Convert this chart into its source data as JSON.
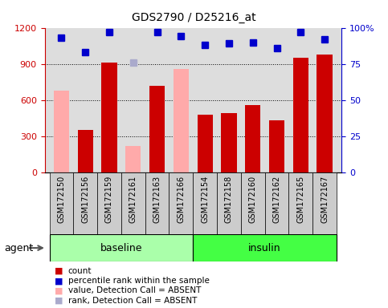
{
  "title": "GDS2790 / D25216_at",
  "categories": [
    "GSM172150",
    "GSM172156",
    "GSM172159",
    "GSM172161",
    "GSM172163",
    "GSM172166",
    "GSM172154",
    "GSM172158",
    "GSM172160",
    "GSM172162",
    "GSM172165",
    "GSM172167"
  ],
  "count_values": [
    null,
    350,
    910,
    null,
    720,
    null,
    480,
    490,
    560,
    430,
    950,
    980
  ],
  "count_absent_values": [
    680,
    null,
    null,
    220,
    null,
    860,
    null,
    null,
    null,
    null,
    null,
    null
  ],
  "percentile_values": [
    93,
    83,
    97,
    null,
    97,
    94,
    88,
    89,
    90,
    86,
    97,
    92
  ],
  "percentile_absent_values": [
    null,
    null,
    null,
    76,
    null,
    null,
    null,
    null,
    null,
    null,
    null,
    null
  ],
  "count_color": "#cc0000",
  "count_absent_color": "#ffaaaa",
  "percentile_color": "#0000cc",
  "percentile_absent_color": "#aaaacc",
  "baseline_color": "#aaffaa",
  "insulin_color": "#44ff44",
  "ylim_left": [
    0,
    1200
  ],
  "ylim_right": [
    0,
    100
  ],
  "yticks_left": [
    0,
    300,
    600,
    900,
    1200
  ],
  "yticks_right": [
    0,
    25,
    50,
    75,
    100
  ],
  "ytick_labels_right": [
    "0",
    "25",
    "50",
    "75",
    "100%"
  ],
  "grid_lines": [
    300,
    600,
    900
  ],
  "n_baseline": 6,
  "n_insulin": 6,
  "legend_items": [
    {
      "color": "#cc0000",
      "label": "count"
    },
    {
      "color": "#0000cc",
      "label": "percentile rank within the sample"
    },
    {
      "color": "#ffaaaa",
      "label": "value, Detection Call = ABSENT"
    },
    {
      "color": "#aaaacc",
      "label": "rank, Detection Call = ABSENT"
    }
  ]
}
